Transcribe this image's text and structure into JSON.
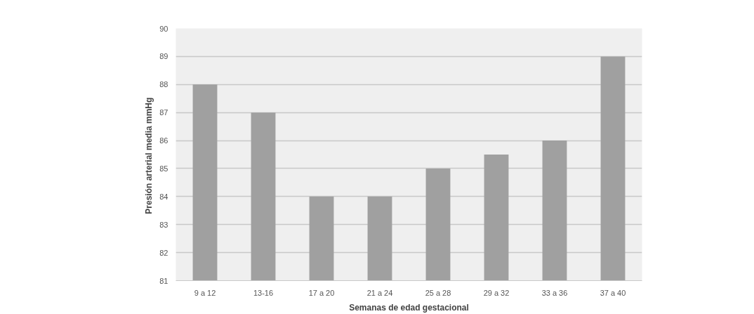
{
  "chart_data": {
    "type": "bar",
    "xlabel": "Semanas de edad gestacional",
    "ylabel": "Presión arterial media  mmHg",
    "categories": [
      "9 a 12",
      "13-16",
      "17 a 20",
      "21 a 24",
      "25 a 28",
      "29 a 32",
      "33 a 36",
      "37 a 40"
    ],
    "values": [
      88,
      87,
      84,
      84,
      85,
      85.5,
      86,
      89
    ],
    "color": "#a0a0a0",
    "ylim": [
      81,
      90
    ],
    "yticks": [
      81,
      82,
      83,
      84,
      85,
      86,
      87,
      88,
      89,
      90
    ],
    "grid": "y"
  }
}
